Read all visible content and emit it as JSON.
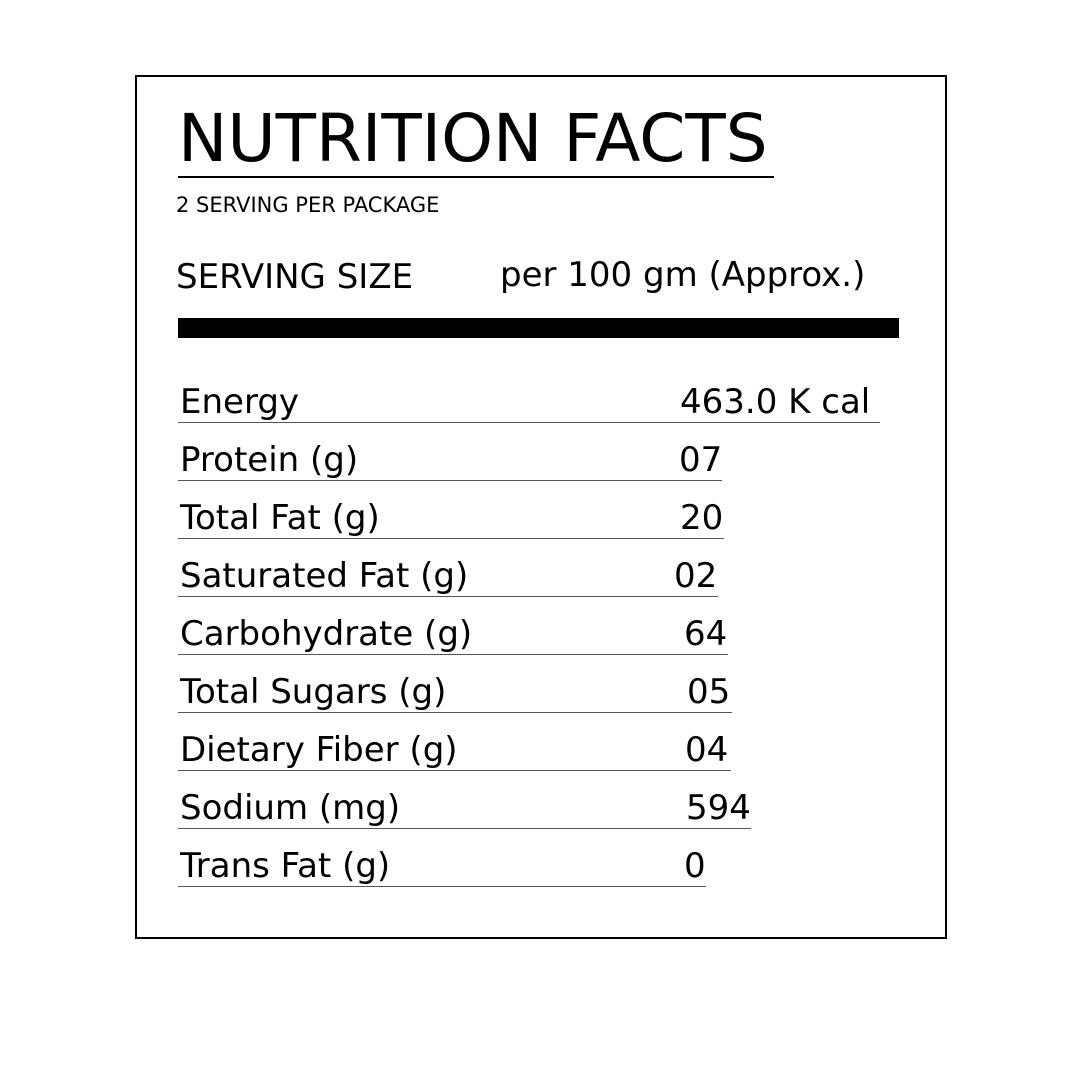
{
  "label": {
    "title": "NUTRITION FACTS",
    "servings_per_package": "2 SERVING PER PACKAGE",
    "serving_size_label": "SERVING SIZE",
    "serving_size_value": "per 100 gm (Approx.)"
  },
  "nutrients": [
    {
      "name": "Energy",
      "value": "463.0 K cal"
    },
    {
      "name": "Protein (g)",
      "value": "07"
    },
    {
      "name": "Total Fat (g)",
      "value": "20"
    },
    {
      "name": "Saturated Fat (g)",
      "value": "02"
    },
    {
      "name": "Carbohydrate (g)",
      "value": "64"
    },
    {
      "name": "Total Sugars (g)",
      "value": "05"
    },
    {
      "name": "Dietary Fiber (g)",
      "value": "04"
    },
    {
      "name": "Sodium (mg)",
      "value": "594"
    },
    {
      "name": "Trans Fat (g)",
      "value": "0"
    }
  ]
}
